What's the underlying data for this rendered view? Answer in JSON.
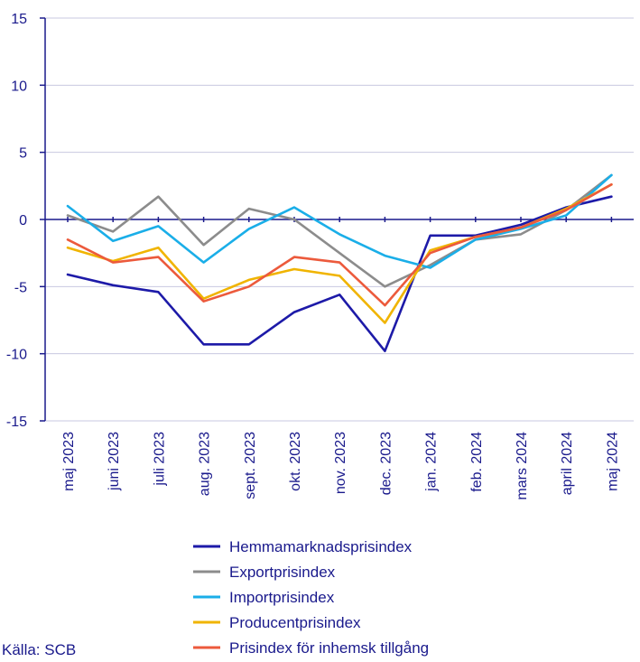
{
  "chart_data": {
    "type": "line",
    "title": "",
    "xlabel": "",
    "ylabel": "",
    "ylim": [
      -15,
      15
    ],
    "yticks": [
      15,
      10,
      5,
      0,
      -5,
      -10,
      -15
    ],
    "categories": [
      "maj 2023",
      "juni 2023",
      "juli 2023",
      "aug. 2023",
      "sept. 2023",
      "okt. 2023",
      "nov. 2023",
      "dec. 2023",
      "jan. 2024",
      "feb. 2024",
      "mars 2024",
      "april 2024",
      "maj 2024"
    ],
    "grid": true,
    "legend_position": "bottom",
    "series": [
      {
        "name": "Hemmamarknadsprisindex",
        "color": "#1d1aa8",
        "values": [
          -4.1,
          -4.9,
          -5.4,
          -9.3,
          -9.3,
          -6.9,
          -5.6,
          -9.8,
          -1.2,
          -1.2,
          -0.4,
          0.9,
          1.7
        ]
      },
      {
        "name": "Exportprisindex",
        "color": "#8c8c8c",
        "values": [
          0.3,
          -0.9,
          1.7,
          -1.9,
          0.8,
          0.0,
          -2.5,
          -5.0,
          -3.4,
          -1.5,
          -1.1,
          0.7,
          3.3
        ]
      },
      {
        "name": "Importprisindex",
        "color": "#1aaee8",
        "values": [
          1.0,
          -1.6,
          -0.5,
          -3.2,
          -0.7,
          0.9,
          -1.1,
          -2.7,
          -3.6,
          -1.5,
          -0.7,
          0.3,
          3.3
        ]
      },
      {
        "name": "Producentprisindex",
        "color": "#f0b400",
        "values": [
          -2.1,
          -3.1,
          -2.1,
          -5.9,
          -4.5,
          -3.7,
          -4.2,
          -7.7,
          -2.3,
          -1.3,
          -0.6,
          0.8,
          2.6
        ]
      },
      {
        "name": "Prisindex för inhemsk tillgång",
        "color": "#ec5a3c",
        "values": [
          -1.5,
          -3.2,
          -2.8,
          -6.1,
          -5.0,
          -2.8,
          -3.2,
          -6.4,
          -2.5,
          -1.3,
          -0.6,
          0.7,
          2.6
        ]
      }
    ]
  },
  "source": "Källa: SCB",
  "colors": {
    "axis": "#1a1a8c",
    "grid": "#c8c8e0",
    "text": "#1a1a8c"
  }
}
